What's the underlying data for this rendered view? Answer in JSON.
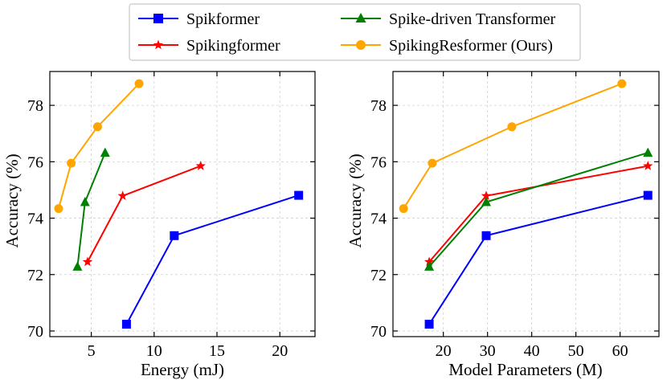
{
  "chart_data": [
    {
      "type": "line",
      "xlabel": "Energy (mJ)",
      "ylabel": "Accuracy (%)",
      "xlim": [
        1.7,
        22.8
      ],
      "ylim": [
        69.8,
        79.2
      ],
      "xticks": [
        5,
        10,
        15,
        20
      ],
      "yticks": [
        70,
        72,
        74,
        76,
        78
      ],
      "grid": true,
      "series": [
        {
          "name": "Spikformer",
          "color": "#0000ff",
          "marker": "square",
          "x": [
            7.8,
            11.6,
            21.5
          ],
          "y": [
            70.24,
            73.38,
            74.81
          ]
        },
        {
          "name": "Spikingformer",
          "color": "#ff0000",
          "marker": "star",
          "x": [
            4.7,
            7.5,
            13.7
          ],
          "y": [
            72.45,
            74.79,
            75.85
          ]
        },
        {
          "name": "Spike-driven Transformer",
          "color": "#008000",
          "marker": "triangle",
          "x": [
            3.9,
            4.5,
            6.1
          ],
          "y": [
            72.28,
            74.57,
            76.32
          ]
        },
        {
          "name": "SpikingResformer (Ours)",
          "color": "#ffa500",
          "marker": "circle",
          "x": [
            2.4,
            3.4,
            5.5,
            8.8
          ],
          "y": [
            74.34,
            75.95,
            77.24,
            78.77
          ]
        }
      ]
    },
    {
      "type": "line",
      "xlabel": "Model Parameters (M)",
      "ylabel": "Accuracy (%)",
      "xlim": [
        8.6,
        68.8
      ],
      "ylim": [
        69.8,
        79.2
      ],
      "xticks": [
        20,
        30,
        40,
        50,
        60
      ],
      "yticks": [
        70,
        72,
        74,
        76,
        78
      ],
      "grid": true,
      "series": [
        {
          "name": "Spikformer",
          "color": "#0000ff",
          "marker": "square",
          "x": [
            16.8,
            29.7,
            66.3
          ],
          "y": [
            70.24,
            73.38,
            74.81
          ]
        },
        {
          "name": "Spikingformer",
          "color": "#ff0000",
          "marker": "star",
          "x": [
            16.8,
            29.7,
            66.3
          ],
          "y": [
            72.45,
            74.79,
            75.85
          ]
        },
        {
          "name": "Spike-driven Transformer",
          "color": "#008000",
          "marker": "triangle",
          "x": [
            16.8,
            29.7,
            66.3
          ],
          "y": [
            72.28,
            74.57,
            76.32
          ]
        },
        {
          "name": "SpikingResformer (Ours)",
          "color": "#ffa500",
          "marker": "circle",
          "x": [
            11.0,
            17.5,
            35.5,
            60.4
          ],
          "y": [
            74.34,
            75.95,
            77.24,
            78.77
          ]
        }
      ]
    }
  ],
  "legend": {
    "items": [
      {
        "label": "Spikformer",
        "color": "#0000ff",
        "marker": "square"
      },
      {
        "label": "Spikingformer",
        "color": "#ff0000",
        "marker": "star"
      },
      {
        "label": "Spike-driven Transformer",
        "color": "#008000",
        "marker": "triangle"
      },
      {
        "label": "SpikingResformer (Ours)",
        "color": "#ffa500",
        "marker": "circle"
      }
    ]
  }
}
